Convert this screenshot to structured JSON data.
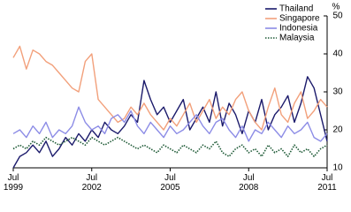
{
  "chart_data": {
    "type": "line",
    "y_label": "%",
    "x": [
      1999.5,
      1999.75,
      2000,
      2000.25,
      2000.5,
      2000.75,
      2001,
      2001.25,
      2001.5,
      2001.75,
      2002,
      2002.25,
      2002.5,
      2002.75,
      2003,
      2003.25,
      2003.5,
      2003.75,
      2004,
      2004.25,
      2004.5,
      2004.75,
      2005,
      2005.25,
      2005.5,
      2005.75,
      2006,
      2006.25,
      2006.5,
      2006.75,
      2007,
      2007.25,
      2007.5,
      2007.75,
      2008,
      2008.25,
      2008.5,
      2008.75,
      2009,
      2009.25,
      2009.5,
      2009.75,
      2010,
      2010.25,
      2010.5,
      2010.75,
      2011,
      2011.25,
      2011.5
    ],
    "series": [
      {
        "name": "Thailand",
        "color": "#1b1a6b",
        "dash": "solid",
        "values": [
          10,
          13,
          14,
          16,
          14,
          17,
          13,
          15,
          18,
          16,
          19,
          17,
          20,
          18,
          22,
          20,
          19,
          21,
          24,
          22,
          33,
          28,
          24,
          26,
          22,
          25,
          28,
          20,
          23,
          26,
          22,
          30,
          21,
          27,
          24,
          19,
          25,
          22,
          28,
          20,
          24,
          26,
          29,
          22,
          27,
          34,
          31,
          24,
          17
        ]
      },
      {
        "name": "Singapore",
        "color": "#f2a07b",
        "dash": "solid",
        "values": [
          39,
          42,
          36,
          41,
          40,
          38,
          37,
          35,
          33,
          31,
          30,
          38,
          40,
          28,
          26,
          24,
          22,
          23,
          26,
          24,
          27,
          24,
          22,
          20,
          23,
          21,
          24,
          27,
          22,
          25,
          28,
          23,
          26,
          24,
          28,
          30,
          25,
          22,
          20,
          26,
          31,
          24,
          22,
          27,
          30,
          23,
          25,
          28,
          26
        ]
      },
      {
        "name": "Indonesia",
        "color": "#8c8ce6",
        "dash": "solid",
        "values": [
          19,
          20,
          18,
          21,
          19,
          22,
          18,
          20,
          19,
          21,
          26,
          22,
          20,
          21,
          19,
          23,
          24,
          22,
          25,
          21,
          19,
          22,
          20,
          18,
          21,
          19,
          20,
          22,
          24,
          21,
          19,
          22,
          23,
          20,
          18,
          21,
          17,
          20,
          19,
          22,
          20,
          18,
          21,
          19,
          20,
          22,
          18,
          17,
          19
        ]
      },
      {
        "name": "Malaysia",
        "color": "#1e5a36",
        "dash": "dotted",
        "values": [
          15,
          16,
          15,
          17,
          16,
          18,
          17,
          16,
          17,
          18,
          17,
          16,
          18,
          17,
          16,
          17,
          18,
          17,
          16,
          15,
          16,
          15,
          14,
          16,
          15,
          14,
          16,
          15,
          14,
          16,
          15,
          17,
          14,
          13,
          15,
          16,
          14,
          15,
          13,
          16,
          14,
          15,
          13,
          16,
          14,
          15,
          13,
          15,
          16
        ]
      }
    ],
    "xlim": [
      1999.5,
      2011.5
    ],
    "xticks": [
      {
        "value": 1999.5,
        "label": "Jul 1999"
      },
      {
        "value": 2002.5,
        "label": "Jul 2002"
      },
      {
        "value": 2005.5,
        "label": "Jul 2005"
      },
      {
        "value": 2008.5,
        "label": "Jul 2008"
      },
      {
        "value": 2011.5,
        "label": "Jul 2011"
      }
    ],
    "ylim": [
      10,
      50
    ],
    "yticks": [
      10,
      20,
      30,
      40,
      50
    ],
    "y_axis_side": "right",
    "legend": "top-right",
    "grid": false
  }
}
